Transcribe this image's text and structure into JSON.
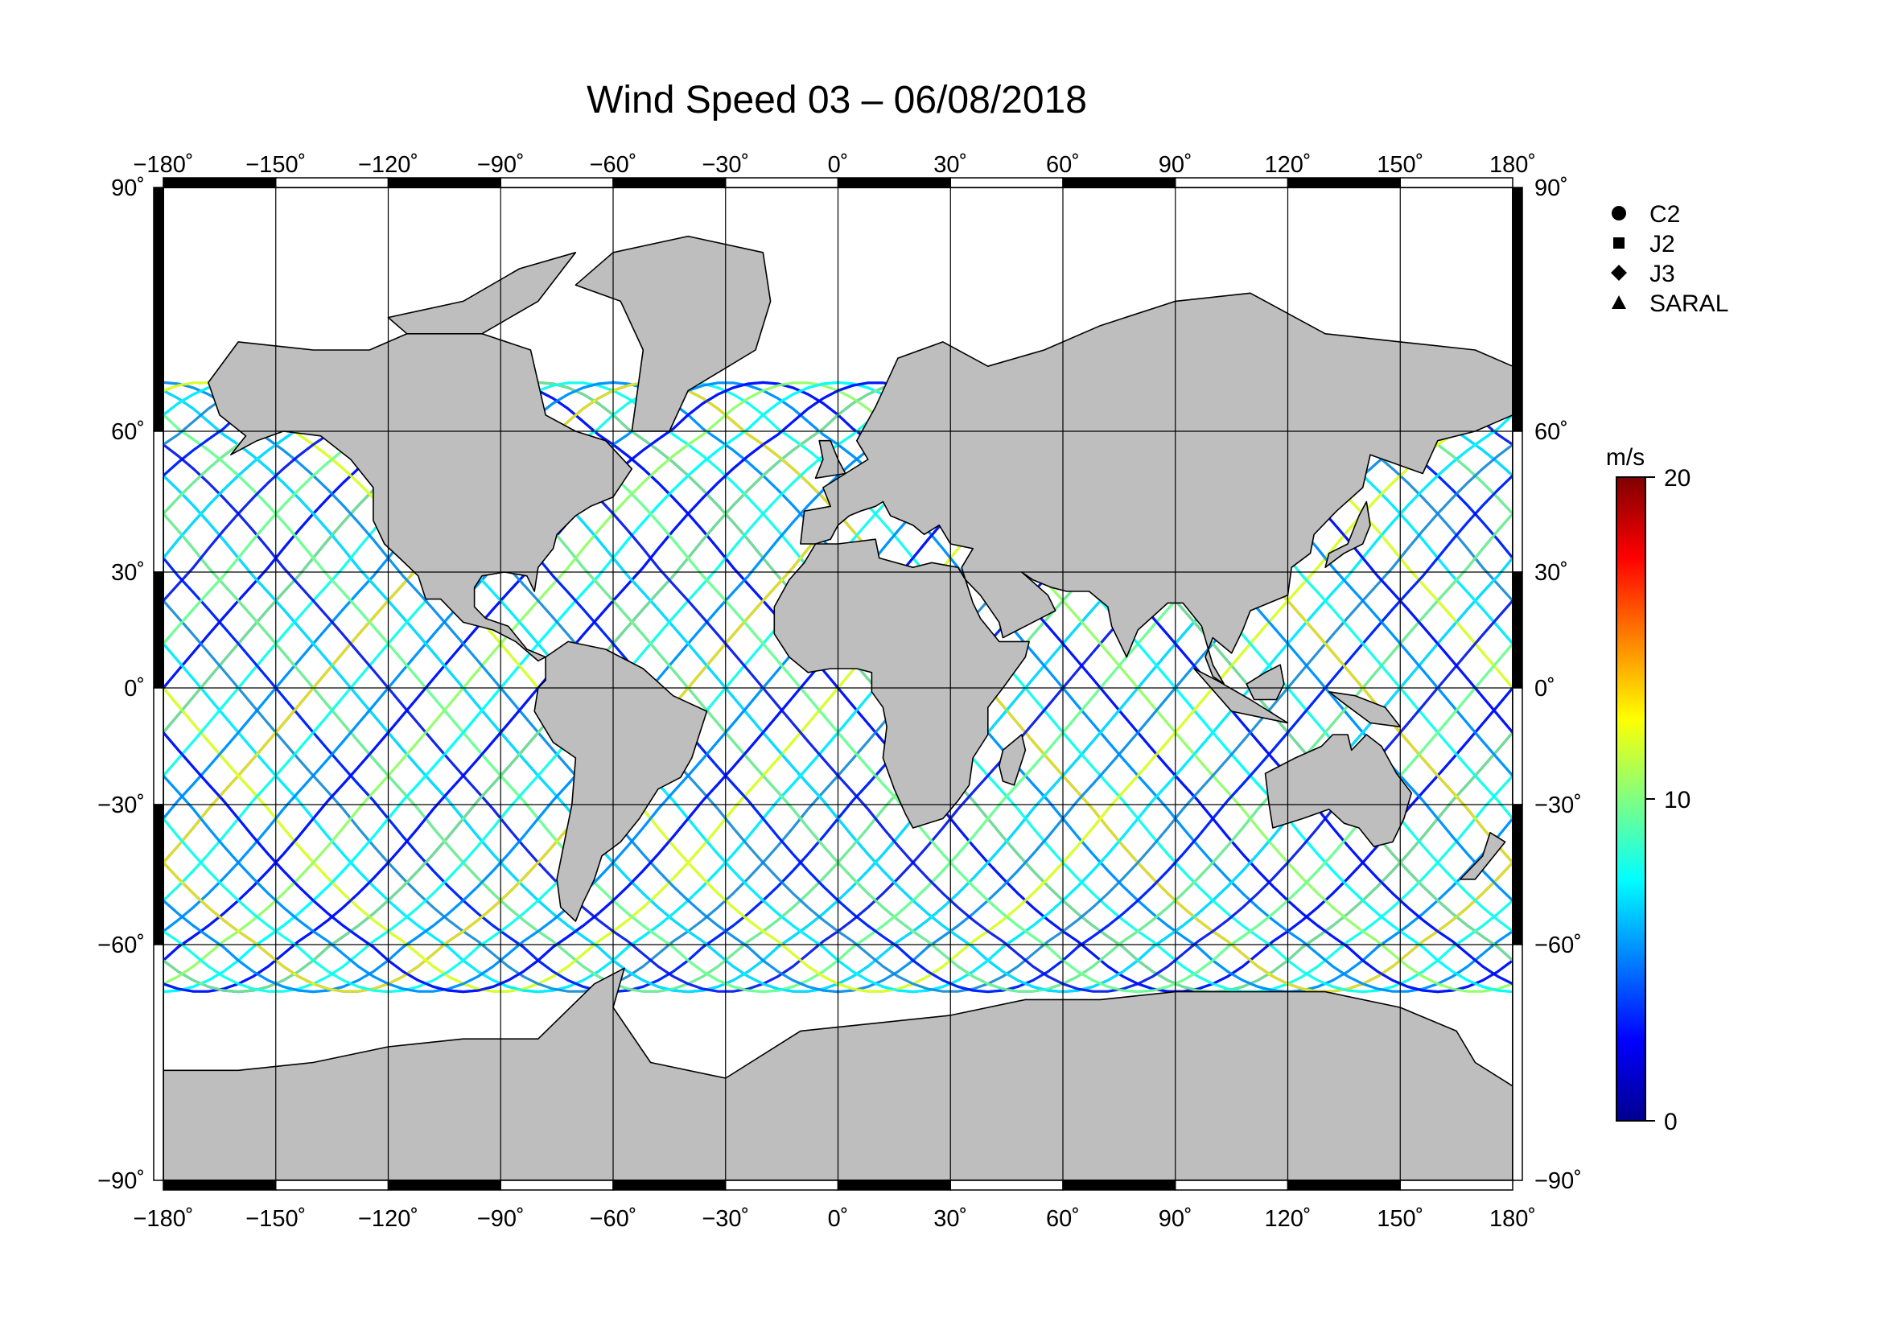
{
  "title": "Wind Speed 03 – 06/08/2018",
  "map": {
    "lon_range": [
      -180,
      180
    ],
    "lat_range": [
      -90,
      90
    ],
    "lon_ticks": [
      "−180˚",
      "−150˚",
      "−120˚",
      "−90˚",
      "−60˚",
      "−30˚",
      "0˚",
      "30˚",
      "60˚",
      "90˚",
      "120˚",
      "150˚",
      "180˚"
    ],
    "lat_ticks": [
      "90˚",
      "60˚",
      "30˚",
      "0˚",
      "−30˚",
      "−60˚",
      "−90˚"
    ],
    "lon_values": [
      -180,
      -150,
      -120,
      -90,
      -60,
      -30,
      0,
      30,
      60,
      90,
      120,
      150,
      180
    ],
    "lat_values": [
      90,
      60,
      30,
      0,
      -30,
      -60,
      -90
    ],
    "grid": true,
    "land_color": "#bebebe"
  },
  "legend": {
    "items": [
      {
        "label": "C2",
        "icon": "circle-icon"
      },
      {
        "label": "J2",
        "icon": "square-icon"
      },
      {
        "label": "J3",
        "icon": "diamond-icon"
      },
      {
        "label": "SARAL",
        "icon": "triangle-icon"
      }
    ]
  },
  "colorbar": {
    "unit": "m/s",
    "min": 0,
    "max": 20,
    "tick_labels": [
      "20",
      "10",
      "0"
    ],
    "tick_values": [
      20,
      10,
      0
    ],
    "colors": [
      "#00008f",
      "#0000ff",
      "#0080ff",
      "#00ffff",
      "#80ff80",
      "#ffff00",
      "#ff8000",
      "#ff0000",
      "#800000"
    ]
  }
}
